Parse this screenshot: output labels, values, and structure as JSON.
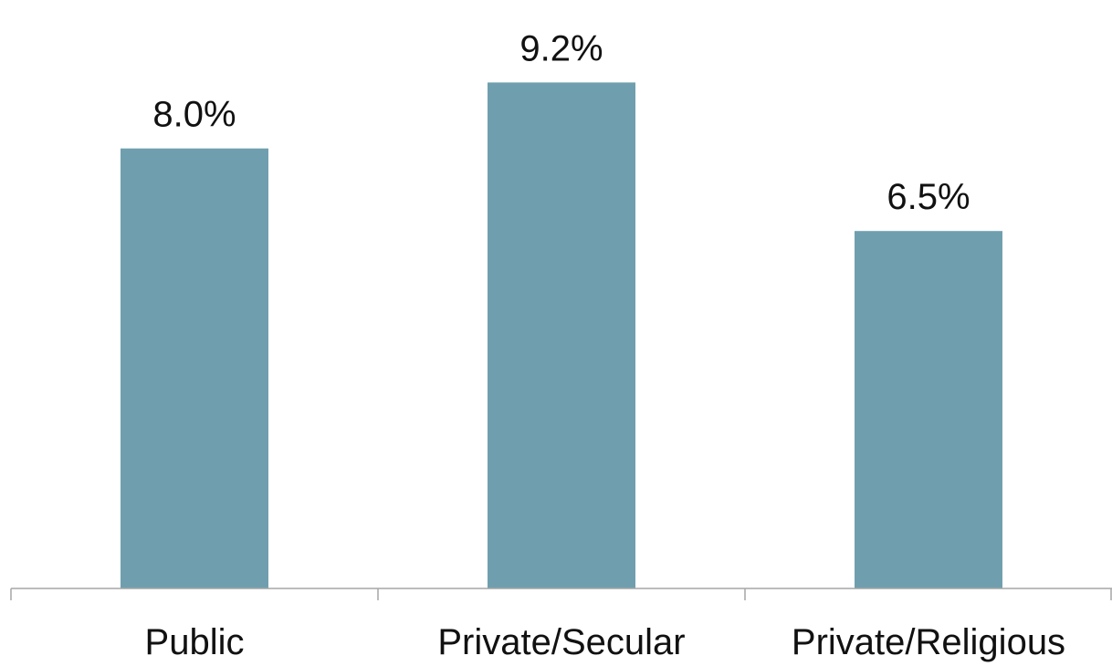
{
  "chart_data": {
    "type": "bar",
    "categories": [
      "Public",
      "Private/Secular",
      "Private/Religious"
    ],
    "values": [
      8.0,
      9.2,
      6.5
    ],
    "value_labels": [
      "8.0%",
      "9.2%",
      "6.5%"
    ],
    "bar_color": "#6f9fae",
    "axis_color": "#a6a6a6",
    "ylim": [
      0,
      10.65
    ],
    "grid": false,
    "legend": "none"
  }
}
